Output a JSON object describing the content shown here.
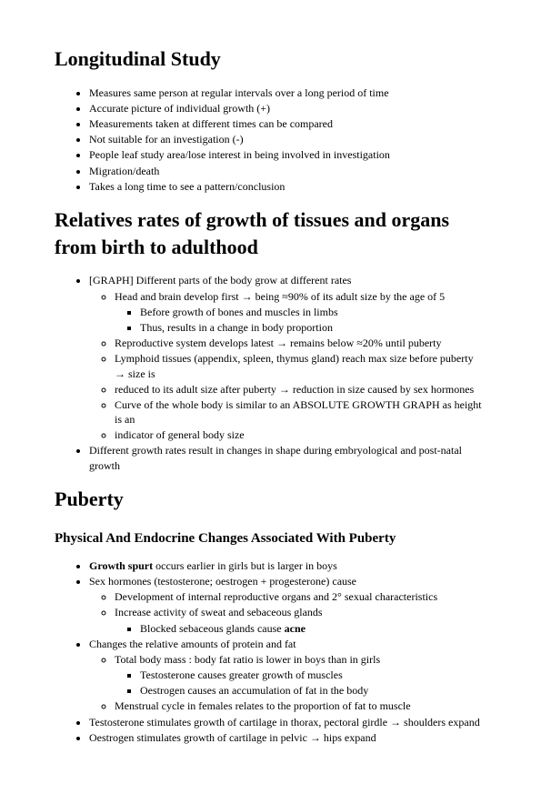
{
  "section1": {
    "title": "Longitudinal Study",
    "items": [
      "Measures same person at regular intervals over a long period of time",
      "Accurate picture of individual growth (+)",
      "Measurements taken at different times can be compared",
      "Not suitable for an investigation (-)",
      "People leaf study area/lose interest in being involved in investigation",
      "Migration/death",
      "Takes a long time to see a pattern/conclusion"
    ]
  },
  "section2": {
    "title": "Relatives rates of growth of tissues and organs from birth to adulthood",
    "li1": "[GRAPH] Different parts of the body grow at different rates",
    "li1a": "Head and brain develop first → being ≈90% of its adult size by the age of 5",
    "li1a1": "Before growth of bones and muscles in limbs",
    "li1a2": "Thus, results in a change in body proportion",
    "li1b": "Reproductive system develops latest → remains below ≈20% until puberty",
    "li1c": "Lymphoid tissues (appendix, spleen, thymus gland) reach max size before puberty → size is",
    "li1d": "reduced to its adult size after puberty → reduction in size caused by sex hormones",
    "li1e": "Curve of the whole body is similar to an ABSOLUTE GROWTH GRAPH as height is an",
    "li1f": "indicator of general body size",
    "li2": "Different growth rates result in changes in shape during embryological and post-natal growth"
  },
  "section3": {
    "title": "Puberty",
    "subtitle": "Physical And Endocrine Changes Associated With Puberty",
    "li1a": "Growth spurt",
    "li1b": " occurs earlier in girls but is larger in boys",
    "li2": "Sex hormones (testosterone; oestrogen + progesterone) cause",
    "li2a": "Development of internal reproductive organs and 2° sexual characteristics",
    "li2b": "Increase activity of sweat and sebaceous glands",
    "li2b1a": "Blocked sebaceous glands cause ",
    "li2b1b": "acne",
    "li3": "Changes the relative amounts of protein and fat",
    "li3a": "Total body mass : body fat ratio is lower in boys than in girls",
    "li3a1": "Testosterone causes greater growth of muscles",
    "li3a2": "Oestrogen causes an accumulation of fat in the body",
    "li3b": "Menstrual cycle in females relates to the proportion of fat to muscle",
    "li4": "Testosterone stimulates growth of cartilage in thorax, pectoral girdle → shoulders expand",
    "li5": "Oestrogen stimulates growth of cartilage in pelvic → hips expand"
  }
}
